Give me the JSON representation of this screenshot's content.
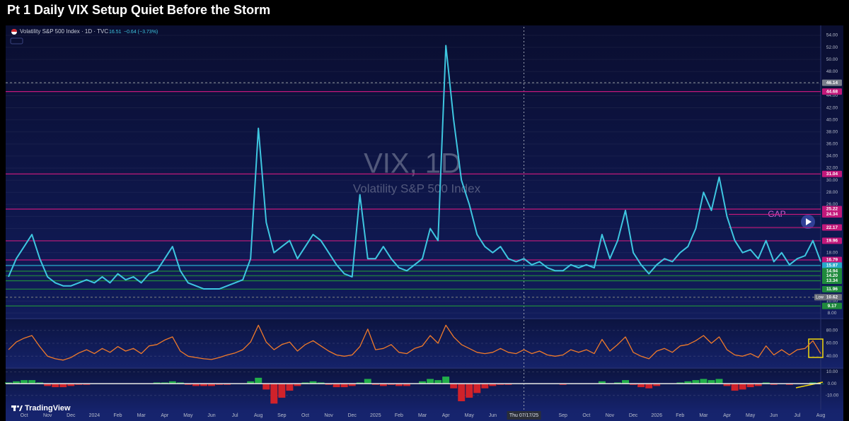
{
  "title": "Pt 1 Daily VIX Setup Quiet Before the Storm",
  "header": {
    "symbol": "Volatility S&P 500 Index · 1D · TVC",
    "last": 16.51,
    "change": "−0.64 (−3.73%)"
  },
  "watermark": [
    "VIX, 1D",
    "Volatility S&P 500 Index"
  ],
  "annotation": "GAP",
  "brand": "TradingView",
  "crosshair_label": "Thu 07/17/25",
  "chart_data": [
    {
      "type": "line",
      "grid": true,
      "categories": [
        null,
        null,
        "Oct",
        null,
        null,
        "Nov",
        null,
        null,
        "Dec",
        null,
        null,
        "2024",
        null,
        null,
        "Feb",
        null,
        null,
        "Mar",
        null,
        null,
        "Apr",
        null,
        null,
        "May",
        null,
        null,
        "Jun",
        null,
        null,
        "Jul",
        null,
        null,
        "Aug",
        null,
        null,
        "Sep",
        null,
        null,
        "Oct",
        null,
        null,
        "Nov",
        null,
        null,
        "Dec",
        null,
        null,
        "2025",
        null,
        null,
        "Feb",
        null,
        null,
        "Mar",
        null,
        null,
        "Apr",
        null,
        null,
        "May",
        null,
        null,
        "Jun",
        null,
        null,
        null,
        null,
        null,
        null,
        null,
        null,
        "Sep",
        null,
        null,
        "Oct",
        null,
        null,
        "Nov",
        null,
        null,
        "Dec",
        null,
        null,
        "2026",
        null,
        null,
        "Feb",
        null,
        null,
        "Mar",
        null,
        null,
        "Apr",
        null,
        null,
        "May",
        null,
        null,
        "Jun",
        null,
        null,
        "Jul",
        null,
        null,
        "Aug"
      ],
      "series": [
        {
          "color": "#3ec6e0",
          "values": [
            14,
            17,
            19,
            21,
            17,
            14,
            13,
            12.5,
            12.5,
            13,
            13.5,
            13,
            14,
            13,
            14.5,
            13.5,
            14,
            13,
            14.5,
            15,
            17,
            19,
            15,
            13,
            12.5,
            12,
            12,
            12,
            12.5,
            13,
            13.5,
            17,
            38.6,
            23,
            18,
            19,
            20,
            17,
            19,
            21,
            20,
            18,
            16,
            14.5,
            14,
            27.6,
            17,
            17,
            19,
            17,
            15.5,
            15,
            16,
            17,
            22,
            20,
            52.3,
            40,
            30,
            26,
            21,
            19,
            18,
            19,
            17,
            16.5,
            17,
            16,
            16.5,
            15.5,
            15,
            15,
            16,
            15.5,
            16,
            15.5,
            21,
            17,
            20,
            25,
            18,
            16,
            14.5,
            16,
            17,
            16.5,
            18,
            19,
            22,
            28,
            25,
            30.5,
            24,
            20,
            18,
            18.5,
            17,
            20,
            16.5,
            18,
            16,
            17,
            17.5,
            20,
            16.51
          ]
        }
      ],
      "ylim": [
        7.2,
        55.4
      ],
      "yticks": [
        {
          "value": 8,
          "label": "8.00"
        },
        {
          "value": 10,
          "label": "10.00"
        },
        {
          "value": 12,
          "label": "12.00"
        },
        {
          "value": 14,
          "label": "14.00"
        },
        {
          "value": 16,
          "label": "16.00"
        },
        {
          "value": 18,
          "label": "18.00"
        },
        {
          "value": 20,
          "label": "20.00"
        },
        {
          "value": 22,
          "label": "22.00"
        },
        {
          "value": 24,
          "label": "24.00"
        },
        {
          "value": 26,
          "label": "26.00"
        },
        {
          "value": 28,
          "label": "28.00"
        },
        {
          "value": 30,
          "label": "30.00"
        },
        {
          "value": 32,
          "label": "32.00"
        },
        {
          "value": 34,
          "label": "34.00"
        },
        {
          "value": 36,
          "label": "36.00"
        },
        {
          "value": 38,
          "label": "38.00"
        },
        {
          "value": 40,
          "label": "40.00"
        },
        {
          "value": 42,
          "label": "42.00"
        },
        {
          "value": 44,
          "label": "44.00"
        },
        {
          "value": 46,
          "label": "46.00"
        },
        {
          "value": 48,
          "label": "48.00"
        },
        {
          "value": 50,
          "label": "50.00"
        },
        {
          "value": 52,
          "label": "52.00"
        },
        {
          "value": 54,
          "label": "54.00"
        }
      ],
      "levels": [
        {
          "value": 46.14,
          "color": "#7a7f8c",
          "style": "dashed"
        },
        {
          "value": 44.68,
          "color": "#c2187a"
        },
        {
          "value": 31.04,
          "color": "#c2187a"
        },
        {
          "value": 25.22,
          "color": "#c2187a"
        },
        {
          "value": 24.34,
          "color": "#c2187a",
          "extent": "partial"
        },
        {
          "value": 22.17,
          "color": "#c2187a",
          "extent": "partial"
        },
        {
          "value": 19.96,
          "color": "#c2187a"
        },
        {
          "value": 16.79,
          "color": "#c2187a"
        },
        {
          "value": 15.87,
          "color": "#26a9c9"
        },
        {
          "value": 14.94,
          "color": "#1f8a3c"
        },
        {
          "value": {
            "value": 14.2,
            "label": "14.20"
          },
          "color": "#1f8a3c"
        },
        {
          "value": 13.34,
          "color": "#1f8a3c"
        },
        {
          "value": 11.96,
          "color": "#1f8a3c"
        },
        {
          "value": 10.62,
          "color": "#6b6f7a",
          "style": "dashed",
          "tag": "Low"
        },
        {
          "value": 9.17,
          "color": "#1f8a3c"
        }
      ]
    },
    {
      "type": "line",
      "color": "#f07a2a",
      "values": [
        50,
        62,
        68,
        72,
        55,
        40,
        36,
        34,
        38,
        45,
        50,
        44,
        52,
        46,
        55,
        48,
        52,
        44,
        56,
        58,
        65,
        70,
        48,
        40,
        38,
        36,
        35,
        38,
        42,
        45,
        50,
        62,
        88,
        62,
        50,
        58,
        62,
        48,
        58,
        64,
        56,
        48,
        42,
        40,
        42,
        55,
        82,
        50,
        52,
        58,
        46,
        44,
        52,
        56,
        72,
        60,
        88,
        70,
        58,
        52,
        46,
        44,
        46,
        52,
        46,
        44,
        50,
        44,
        48,
        42,
        40,
        42,
        50,
        46,
        50,
        44,
        66,
        48,
        58,
        70,
        46,
        40,
        36,
        48,
        52,
        46,
        56,
        58,
        64,
        72,
        60,
        70,
        50,
        42,
        40,
        44,
        38,
        56,
        42,
        50,
        42,
        50,
        52,
        64,
        44
      ],
      "ylim": [
        25,
        95
      ],
      "yticks": [
        {
          "value": 80,
          "label": "80.00"
        },
        {
          "value": 60,
          "label": "60.00"
        },
        {
          "value": 40,
          "label": "40.00"
        }
      ]
    },
    {
      "type": "histogram",
      "up_color": "#22b04a",
      "down_color": "#d0222a",
      "values": [
        1,
        2,
        3,
        3,
        1,
        -2,
        -3,
        -3,
        -2,
        -1,
        -1,
        0,
        0,
        0,
        0,
        0,
        0,
        0,
        0,
        1,
        1,
        2,
        1,
        -1,
        -2,
        -2,
        -2,
        -1,
        -1,
        0,
        0,
        2,
        5,
        -5,
        -17,
        -12,
        -6,
        -2,
        1,
        2,
        1,
        -1,
        -3,
        -3,
        -2,
        1,
        4,
        -1,
        -2,
        -1,
        -2,
        -2,
        0,
        2,
        4,
        3,
        6,
        -4,
        -15,
        -12,
        -8,
        -4,
        -2,
        -1,
        -1,
        0,
        0,
        0,
        0,
        0,
        0,
        -1,
        0,
        0,
        0,
        0,
        2,
        0,
        1,
        3,
        -1,
        -3,
        -4,
        -2,
        0,
        0,
        1,
        2,
        3,
        4,
        3,
        4,
        -2,
        -6,
        -5,
        -3,
        -2,
        1,
        -1,
        0,
        -1,
        0,
        0,
        1,
        0
      ],
      "ylim": [
        -21,
        11.5
      ],
      "yticks": [
        {
          "value": 10,
          "label": "10.00"
        },
        {
          "value": 0,
          "label": "0.00"
        },
        {
          "value": -10,
          "label": "-10.00"
        }
      ]
    }
  ]
}
